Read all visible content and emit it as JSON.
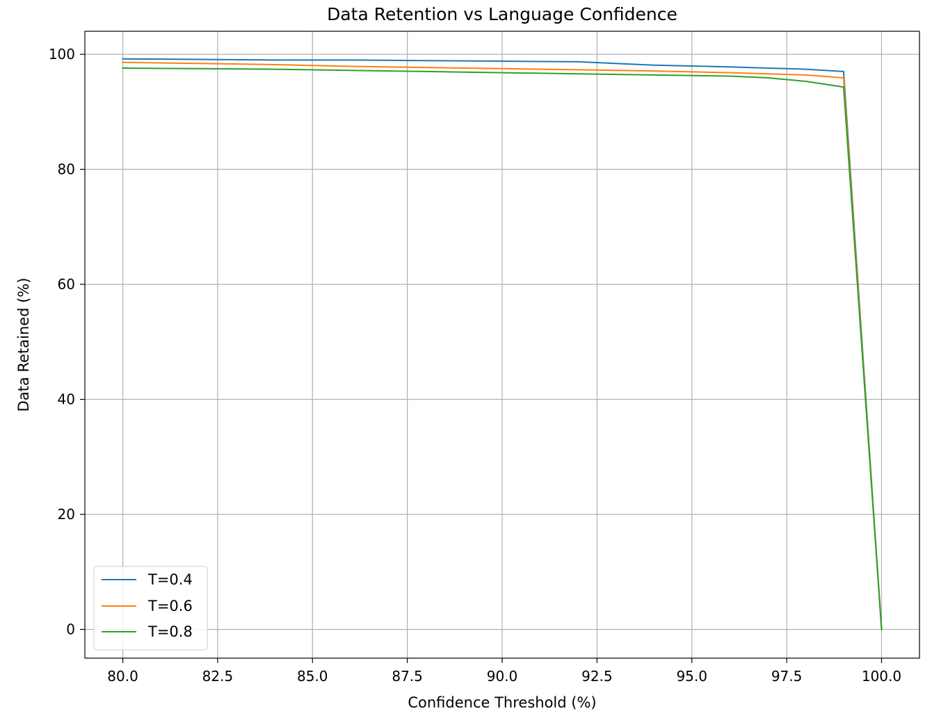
{
  "chart_data": {
    "type": "line",
    "title": "Data Retention vs Language Confidence",
    "xlabel": "Confidence Threshold (%)",
    "ylabel": "Data Retained (%)",
    "xlim": [
      79.0,
      101.0
    ],
    "ylim": [
      -5.0,
      104.0
    ],
    "xticks": [
      80.0,
      82.5,
      85.0,
      87.5,
      90.0,
      92.5,
      95.0,
      97.5,
      100.0
    ],
    "xtick_labels": [
      "80.0",
      "82.5",
      "85.0",
      "87.5",
      "90.0",
      "92.5",
      "95.0",
      "97.5",
      "100.0"
    ],
    "yticks": [
      0,
      20,
      40,
      60,
      80,
      100
    ],
    "ytick_labels": [
      "0",
      "20",
      "40",
      "60",
      "80",
      "100"
    ],
    "grid": true,
    "legend": "lower-left",
    "x": [
      80,
      82,
      84,
      86,
      88,
      90,
      92,
      94,
      96,
      97,
      98,
      99,
      100
    ],
    "series": [
      {
        "name": "T=0.4",
        "color": "#1f77b4",
        "values": [
          99.2,
          99.1,
          99.0,
          99.0,
          98.9,
          98.8,
          98.7,
          98.1,
          97.8,
          97.6,
          97.4,
          97.0,
          0.0
        ]
      },
      {
        "name": "T=0.6",
        "color": "#ff7f0e",
        "values": [
          98.6,
          98.4,
          98.2,
          97.9,
          97.7,
          97.5,
          97.3,
          97.1,
          96.8,
          96.6,
          96.4,
          95.9,
          0.0
        ]
      },
      {
        "name": "T=0.8",
        "color": "#2ca02c",
        "values": [
          97.6,
          97.5,
          97.4,
          97.2,
          97.0,
          96.8,
          96.6,
          96.4,
          96.2,
          95.9,
          95.3,
          94.3,
          0.0
        ]
      }
    ]
  }
}
